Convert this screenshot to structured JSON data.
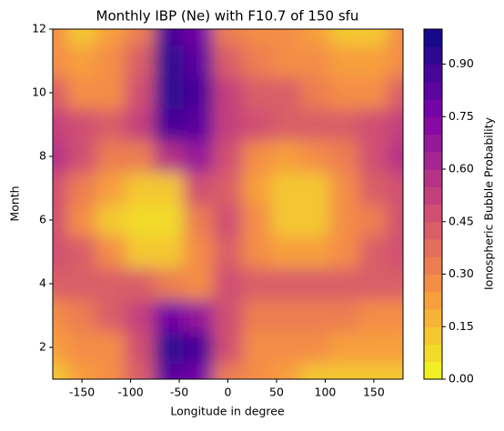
{
  "chart_data": {
    "type": "contour",
    "title": "Monthly IBP (Ne) with F10.7 of 150 sfu",
    "x_label": "Longitude in degree",
    "y_label": "Month",
    "colorbar_label": "Ionospheric Bubble Probability",
    "x": [
      -180,
      -150,
      -120,
      -90,
      -60,
      -30,
      0,
      30,
      60,
      90,
      120,
      150,
      180
    ],
    "y": [
      1,
      2,
      3,
      4,
      5,
      6,
      7,
      8,
      9,
      10,
      11,
      12
    ],
    "z": [
      [
        0.15,
        0.2,
        0.25,
        0.4,
        0.8,
        0.75,
        0.35,
        0.25,
        0.2,
        0.15,
        0.15,
        0.15,
        0.15
      ],
      [
        0.2,
        0.25,
        0.3,
        0.45,
        0.9,
        0.85,
        0.45,
        0.3,
        0.3,
        0.25,
        0.2,
        0.2,
        0.2
      ],
      [
        0.3,
        0.35,
        0.4,
        0.5,
        0.75,
        0.65,
        0.45,
        0.35,
        0.35,
        0.35,
        0.35,
        0.3,
        0.3
      ],
      [
        0.4,
        0.4,
        0.4,
        0.4,
        0.35,
        0.25,
        0.45,
        0.4,
        0.4,
        0.4,
        0.4,
        0.4,
        0.4
      ],
      [
        0.45,
        0.4,
        0.3,
        0.15,
        0.15,
        0.3,
        0.4,
        0.3,
        0.2,
        0.2,
        0.3,
        0.4,
        0.45
      ],
      [
        0.45,
        0.3,
        0.15,
        0.05,
        0.05,
        0.35,
        0.45,
        0.25,
        0.1,
        0.1,
        0.25,
        0.35,
        0.45
      ],
      [
        0.45,
        0.35,
        0.2,
        0.1,
        0.15,
        0.45,
        0.4,
        0.2,
        0.1,
        0.1,
        0.25,
        0.4,
        0.45
      ],
      [
        0.55,
        0.45,
        0.35,
        0.35,
        0.6,
        0.7,
        0.45,
        0.3,
        0.2,
        0.25,
        0.35,
        0.45,
        0.55
      ],
      [
        0.5,
        0.45,
        0.4,
        0.5,
        0.85,
        0.8,
        0.5,
        0.45,
        0.4,
        0.4,
        0.4,
        0.45,
        0.5
      ],
      [
        0.4,
        0.3,
        0.3,
        0.45,
        0.95,
        0.85,
        0.5,
        0.4,
        0.4,
        0.35,
        0.3,
        0.3,
        0.4
      ],
      [
        0.3,
        0.2,
        0.25,
        0.4,
        0.9,
        0.8,
        0.4,
        0.35,
        0.3,
        0.25,
        0.2,
        0.2,
        0.3
      ],
      [
        0.25,
        0.15,
        0.2,
        0.35,
        0.85,
        0.75,
        0.35,
        0.3,
        0.3,
        0.2,
        0.15,
        0.15,
        0.25
      ]
    ],
    "xlim": [
      -180,
      180
    ],
    "ylim": [
      1,
      12
    ],
    "xticks": [
      -150,
      -100,
      -50,
      0,
      50,
      100,
      150
    ],
    "yticks": [
      2,
      4,
      6,
      8,
      10,
      12
    ],
    "clim": [
      0,
      1
    ],
    "levels": 20,
    "cticks": [
      {
        "value": 0,
        "label": "0.00"
      },
      {
        "value": 0.15,
        "label": "0.15"
      },
      {
        "value": 0.3,
        "label": "0.30"
      },
      {
        "value": 0.45,
        "label": "0.45"
      },
      {
        "value": 0.6,
        "label": "0.60"
      },
      {
        "value": 0.75,
        "label": "0.75"
      },
      {
        "value": 0.9,
        "label": "0.90"
      }
    ],
    "colormap": [
      "#f0f921",
      "#f89540",
      "#cc4778",
      "#7e03a8",
      "#0d0887"
    ]
  }
}
